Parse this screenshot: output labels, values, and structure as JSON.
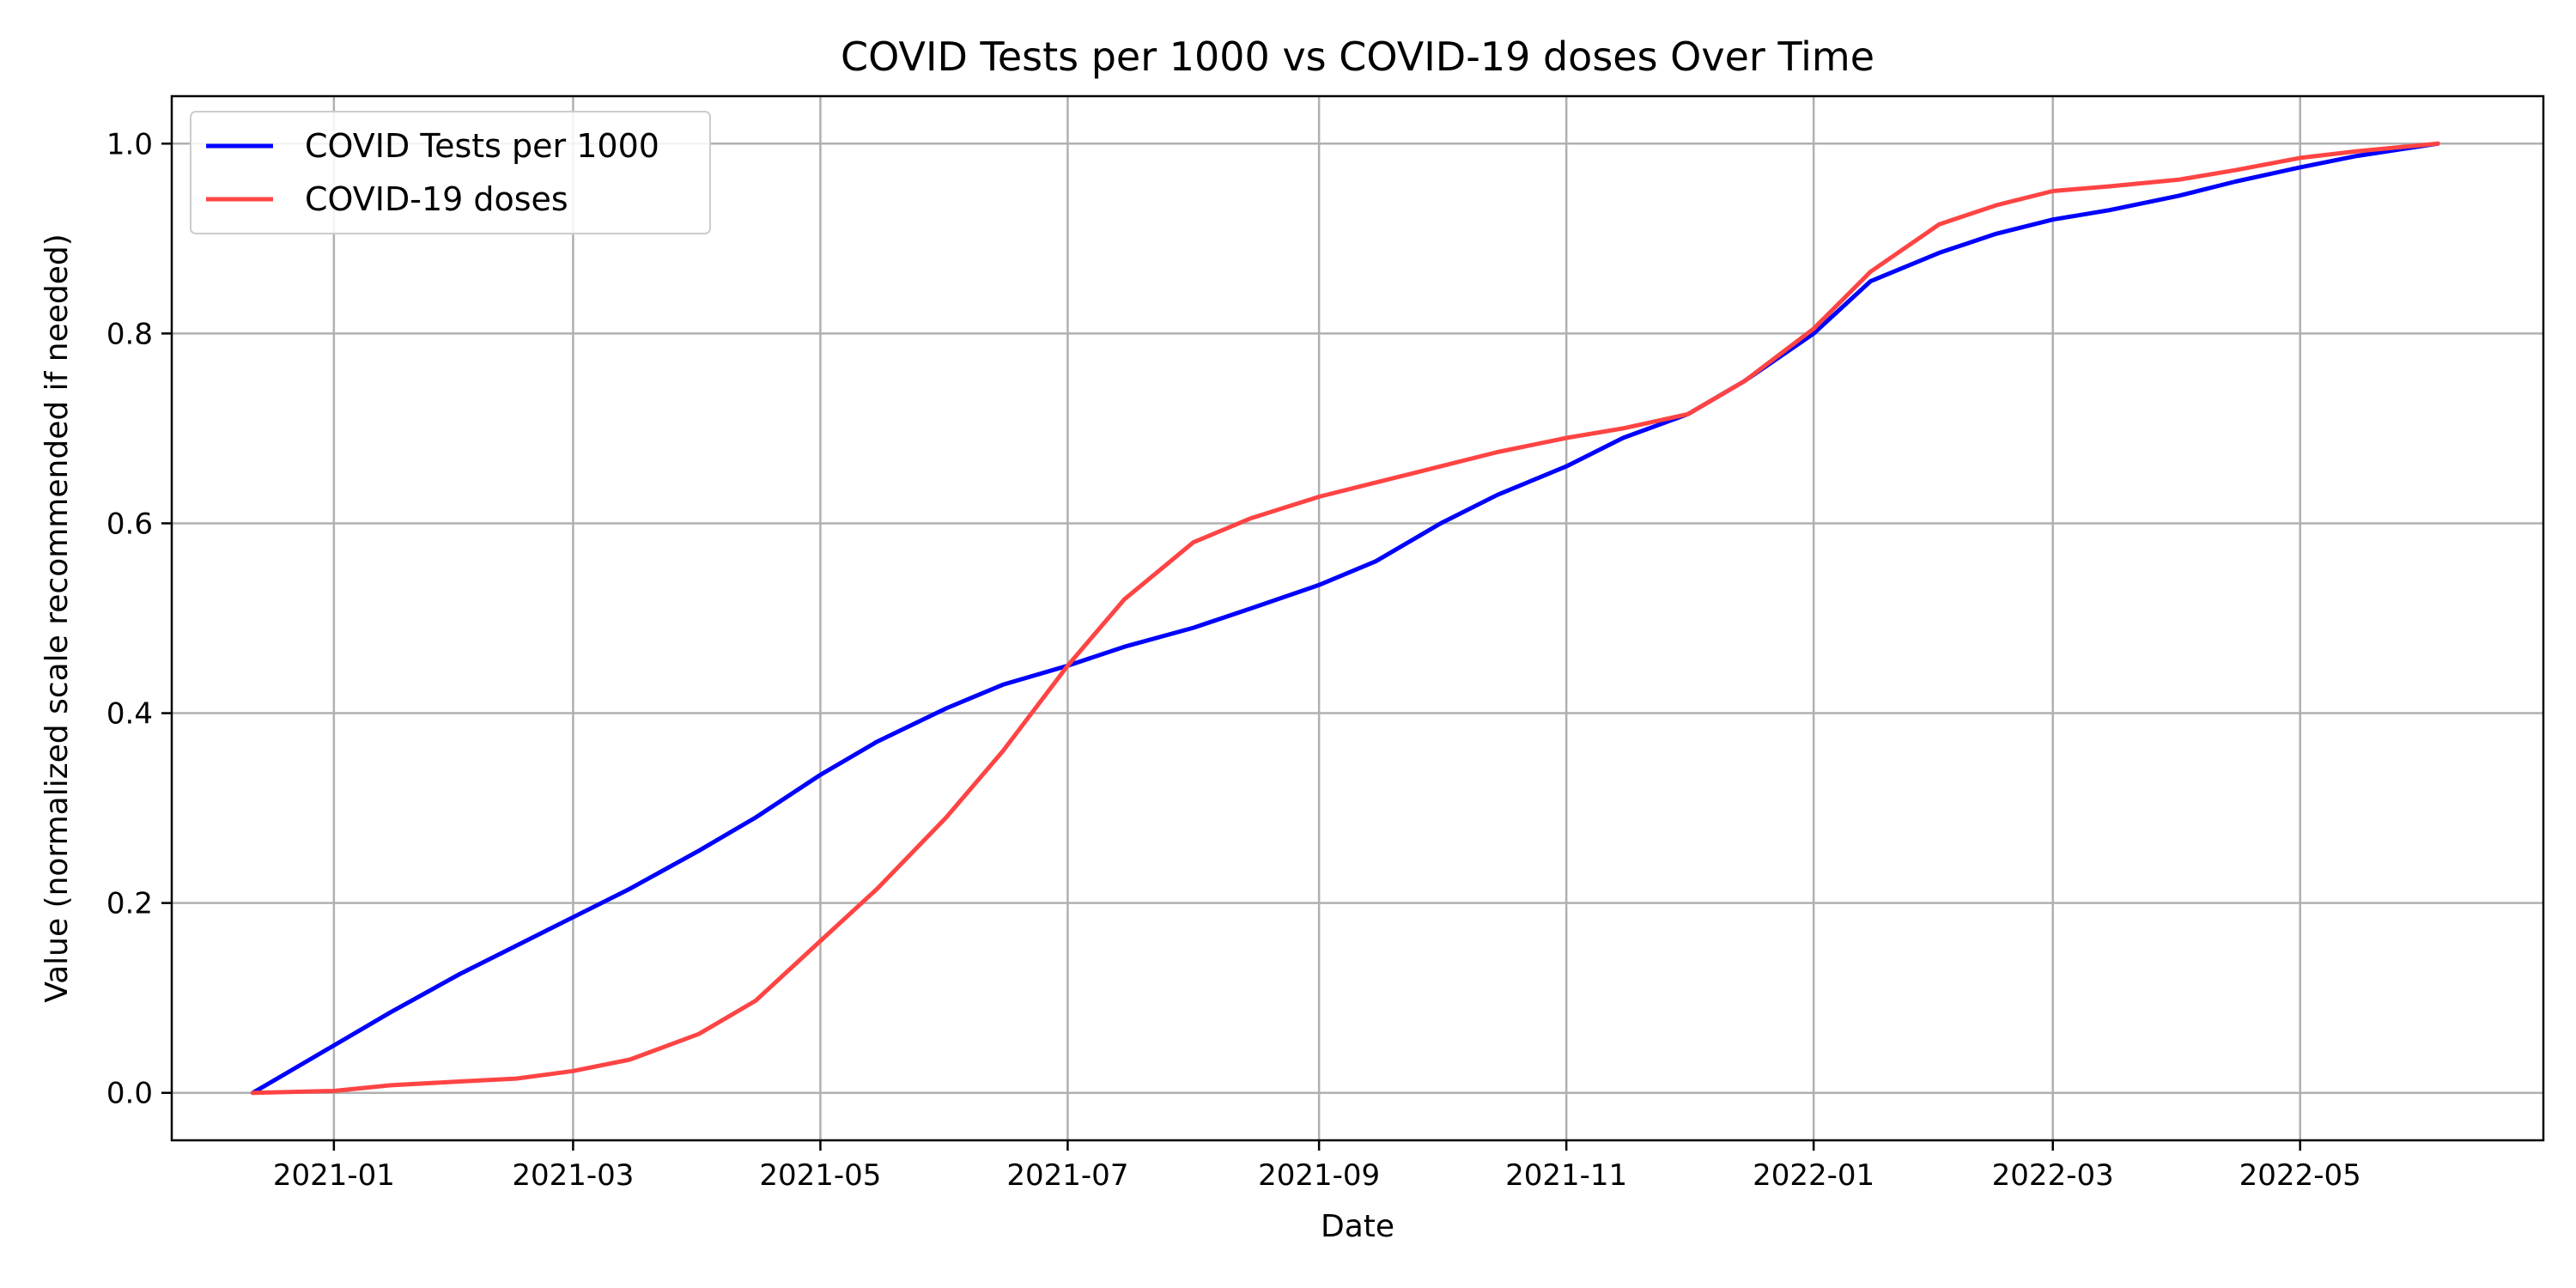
{
  "chart_data": {
    "type": "line",
    "title": "COVID Tests per 1000 vs COVID-19 doses Over Time",
    "xlabel": "Date",
    "ylabel": "Value (normalized scale recommended if needed)",
    "xlim": [
      "2020-11-22",
      "2022-06-30"
    ],
    "ylim": [
      -0.05,
      1.05
    ],
    "grid": true,
    "legend_position": "top-left",
    "x_ticks": [
      "2021-01-01",
      "2021-03-01",
      "2021-05-01",
      "2021-07-01",
      "2021-09-01",
      "2021-11-01",
      "2022-01-01",
      "2022-03-01",
      "2022-05-01"
    ],
    "x_tick_labels": [
      "2021-01",
      "2021-03",
      "2021-05",
      "2021-07",
      "2021-09",
      "2021-11",
      "2022-01",
      "2022-03",
      "2022-05"
    ],
    "y_ticks": [
      0.0,
      0.2,
      0.4,
      0.6,
      0.8,
      1.0
    ],
    "y_tick_labels": [
      "0.0",
      "0.2",
      "0.4",
      "0.6",
      "0.8",
      "1.0"
    ],
    "colors": {
      "grid": "#b0b0b0",
      "axis": "#000000"
    },
    "series": [
      {
        "name": "COVID Tests per 1000",
        "color": "#0000ff",
        "points": [
          [
            "2020-12-12",
            0.0
          ],
          [
            "2020-12-20",
            0.02
          ],
          [
            "2021-01-01",
            0.05
          ],
          [
            "2021-01-15",
            0.085
          ],
          [
            "2021-02-01",
            0.125
          ],
          [
            "2021-02-15",
            0.155
          ],
          [
            "2021-03-01",
            0.185
          ],
          [
            "2021-03-15",
            0.215
          ],
          [
            "2021-04-01",
            0.255
          ],
          [
            "2021-04-15",
            0.29
          ],
          [
            "2021-05-01",
            0.335
          ],
          [
            "2021-05-15",
            0.37
          ],
          [
            "2021-06-01",
            0.405
          ],
          [
            "2021-06-15",
            0.43
          ],
          [
            "2021-07-01",
            0.45
          ],
          [
            "2021-07-15",
            0.47
          ],
          [
            "2021-08-01",
            0.49
          ],
          [
            "2021-08-15",
            0.51
          ],
          [
            "2021-09-01",
            0.535
          ],
          [
            "2021-09-15",
            0.56
          ],
          [
            "2021-10-01",
            0.6
          ],
          [
            "2021-10-15",
            0.63
          ],
          [
            "2021-11-01",
            0.66
          ],
          [
            "2021-11-15",
            0.69
          ],
          [
            "2021-12-01",
            0.715
          ],
          [
            "2021-12-15",
            0.75
          ],
          [
            "2022-01-01",
            0.8
          ],
          [
            "2022-01-15",
            0.855
          ],
          [
            "2022-02-01",
            0.885
          ],
          [
            "2022-02-15",
            0.905
          ],
          [
            "2022-03-01",
            0.92
          ],
          [
            "2022-03-15",
            0.93
          ],
          [
            "2022-04-01",
            0.945
          ],
          [
            "2022-04-15",
            0.96
          ],
          [
            "2022-05-01",
            0.975
          ],
          [
            "2022-05-15",
            0.987
          ],
          [
            "2022-06-04",
            1.0
          ]
        ]
      },
      {
        "name": "COVID-19 doses",
        "color": "#ff4444",
        "points": [
          [
            "2020-12-12",
            0.0
          ],
          [
            "2021-01-01",
            0.002
          ],
          [
            "2021-01-15",
            0.008
          ],
          [
            "2021-02-01",
            0.012
          ],
          [
            "2021-02-15",
            0.015
          ],
          [
            "2021-03-01",
            0.023
          ],
          [
            "2021-03-15",
            0.035
          ],
          [
            "2021-04-01",
            0.062
          ],
          [
            "2021-04-15",
            0.097
          ],
          [
            "2021-05-01",
            0.16
          ],
          [
            "2021-05-15",
            0.215
          ],
          [
            "2021-06-01",
            0.29
          ],
          [
            "2021-06-15",
            0.36
          ],
          [
            "2021-07-01",
            0.45
          ],
          [
            "2021-07-15",
            0.52
          ],
          [
            "2021-08-01",
            0.58
          ],
          [
            "2021-08-15",
            0.605
          ],
          [
            "2021-09-01",
            0.628
          ],
          [
            "2021-09-15",
            0.643
          ],
          [
            "2021-10-01",
            0.66
          ],
          [
            "2021-10-15",
            0.675
          ],
          [
            "2021-11-01",
            0.69
          ],
          [
            "2021-11-15",
            0.7
          ],
          [
            "2021-12-01",
            0.715
          ],
          [
            "2021-12-15",
            0.75
          ],
          [
            "2022-01-01",
            0.805
          ],
          [
            "2022-01-15",
            0.865
          ],
          [
            "2022-02-01",
            0.915
          ],
          [
            "2022-02-15",
            0.935
          ],
          [
            "2022-03-01",
            0.95
          ],
          [
            "2022-03-15",
            0.955
          ],
          [
            "2022-04-01",
            0.962
          ],
          [
            "2022-04-15",
            0.972
          ],
          [
            "2022-05-01",
            0.985
          ],
          [
            "2022-05-15",
            0.992
          ],
          [
            "2022-06-04",
            1.0
          ]
        ]
      }
    ]
  }
}
